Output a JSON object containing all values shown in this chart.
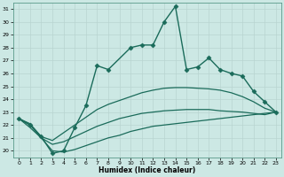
{
  "xlabel": "Humidex (Indice chaleur)",
  "background_color": "#cce8e4",
  "line_color": "#1a6b5a",
  "xlim": [
    -0.5,
    23.5
  ],
  "ylim": [
    19.5,
    31.5
  ],
  "yticks": [
    20,
    21,
    22,
    23,
    24,
    25,
    26,
    27,
    28,
    29,
    30,
    31
  ],
  "xticks": [
    0,
    1,
    2,
    3,
    4,
    5,
    6,
    7,
    8,
    9,
    10,
    11,
    12,
    13,
    14,
    15,
    16,
    17,
    18,
    19,
    20,
    21,
    22,
    23
  ],
  "series": [
    {
      "x": [
        0,
        1,
        2,
        3,
        4,
        5,
        6,
        7,
        8,
        10,
        11,
        12,
        13,
        14,
        15,
        16,
        17,
        18,
        19,
        20,
        21,
        22,
        23
      ],
      "y": [
        22.5,
        22.0,
        21.1,
        19.8,
        20.0,
        21.8,
        23.5,
        26.6,
        26.3,
        28.0,
        28.2,
        28.2,
        30.0,
        31.2,
        26.3,
        26.5,
        27.2,
        26.3,
        26.0,
        25.8,
        24.6,
        23.8,
        23.0
      ],
      "marker": "D",
      "markersize": 2.5,
      "linewidth": 1.0
    },
    {
      "x": [
        0,
        1,
        2,
        3,
        4,
        5,
        6,
        7,
        8,
        9,
        10,
        11,
        12,
        13,
        14,
        15,
        16,
        17,
        18,
        19,
        20,
        21,
        22,
        23
      ],
      "y": [
        22.5,
        22.1,
        21.1,
        20.8,
        21.4,
        22.0,
        22.6,
        23.2,
        23.6,
        23.9,
        24.2,
        24.5,
        24.7,
        24.85,
        24.9,
        24.9,
        24.85,
        24.8,
        24.7,
        24.5,
        24.2,
        23.8,
        23.3,
        23.0
      ],
      "marker": null,
      "linewidth": 0.9
    },
    {
      "x": [
        0,
        1,
        2,
        3,
        4,
        5,
        6,
        7,
        8,
        9,
        10,
        11,
        12,
        13,
        14,
        15,
        16,
        17,
        18,
        19,
        20,
        21,
        22,
        23
      ],
      "y": [
        22.5,
        22.0,
        21.0,
        20.5,
        20.7,
        21.1,
        21.5,
        21.9,
        22.2,
        22.5,
        22.7,
        22.9,
        23.0,
        23.1,
        23.15,
        23.2,
        23.2,
        23.2,
        23.1,
        23.05,
        23.0,
        22.9,
        22.8,
        23.0
      ],
      "marker": null,
      "linewidth": 0.9
    },
    {
      "x": [
        0,
        1,
        2,
        3,
        4,
        5,
        6,
        7,
        8,
        9,
        10,
        11,
        12,
        13,
        14,
        15,
        16,
        17,
        18,
        19,
        20,
        21,
        22,
        23
      ],
      "y": [
        22.5,
        21.8,
        21.0,
        20.0,
        19.9,
        20.1,
        20.4,
        20.7,
        21.0,
        21.2,
        21.5,
        21.7,
        21.9,
        22.0,
        22.1,
        22.2,
        22.3,
        22.4,
        22.5,
        22.6,
        22.7,
        22.8,
        22.9,
        23.0
      ],
      "marker": null,
      "linewidth": 0.9
    }
  ]
}
